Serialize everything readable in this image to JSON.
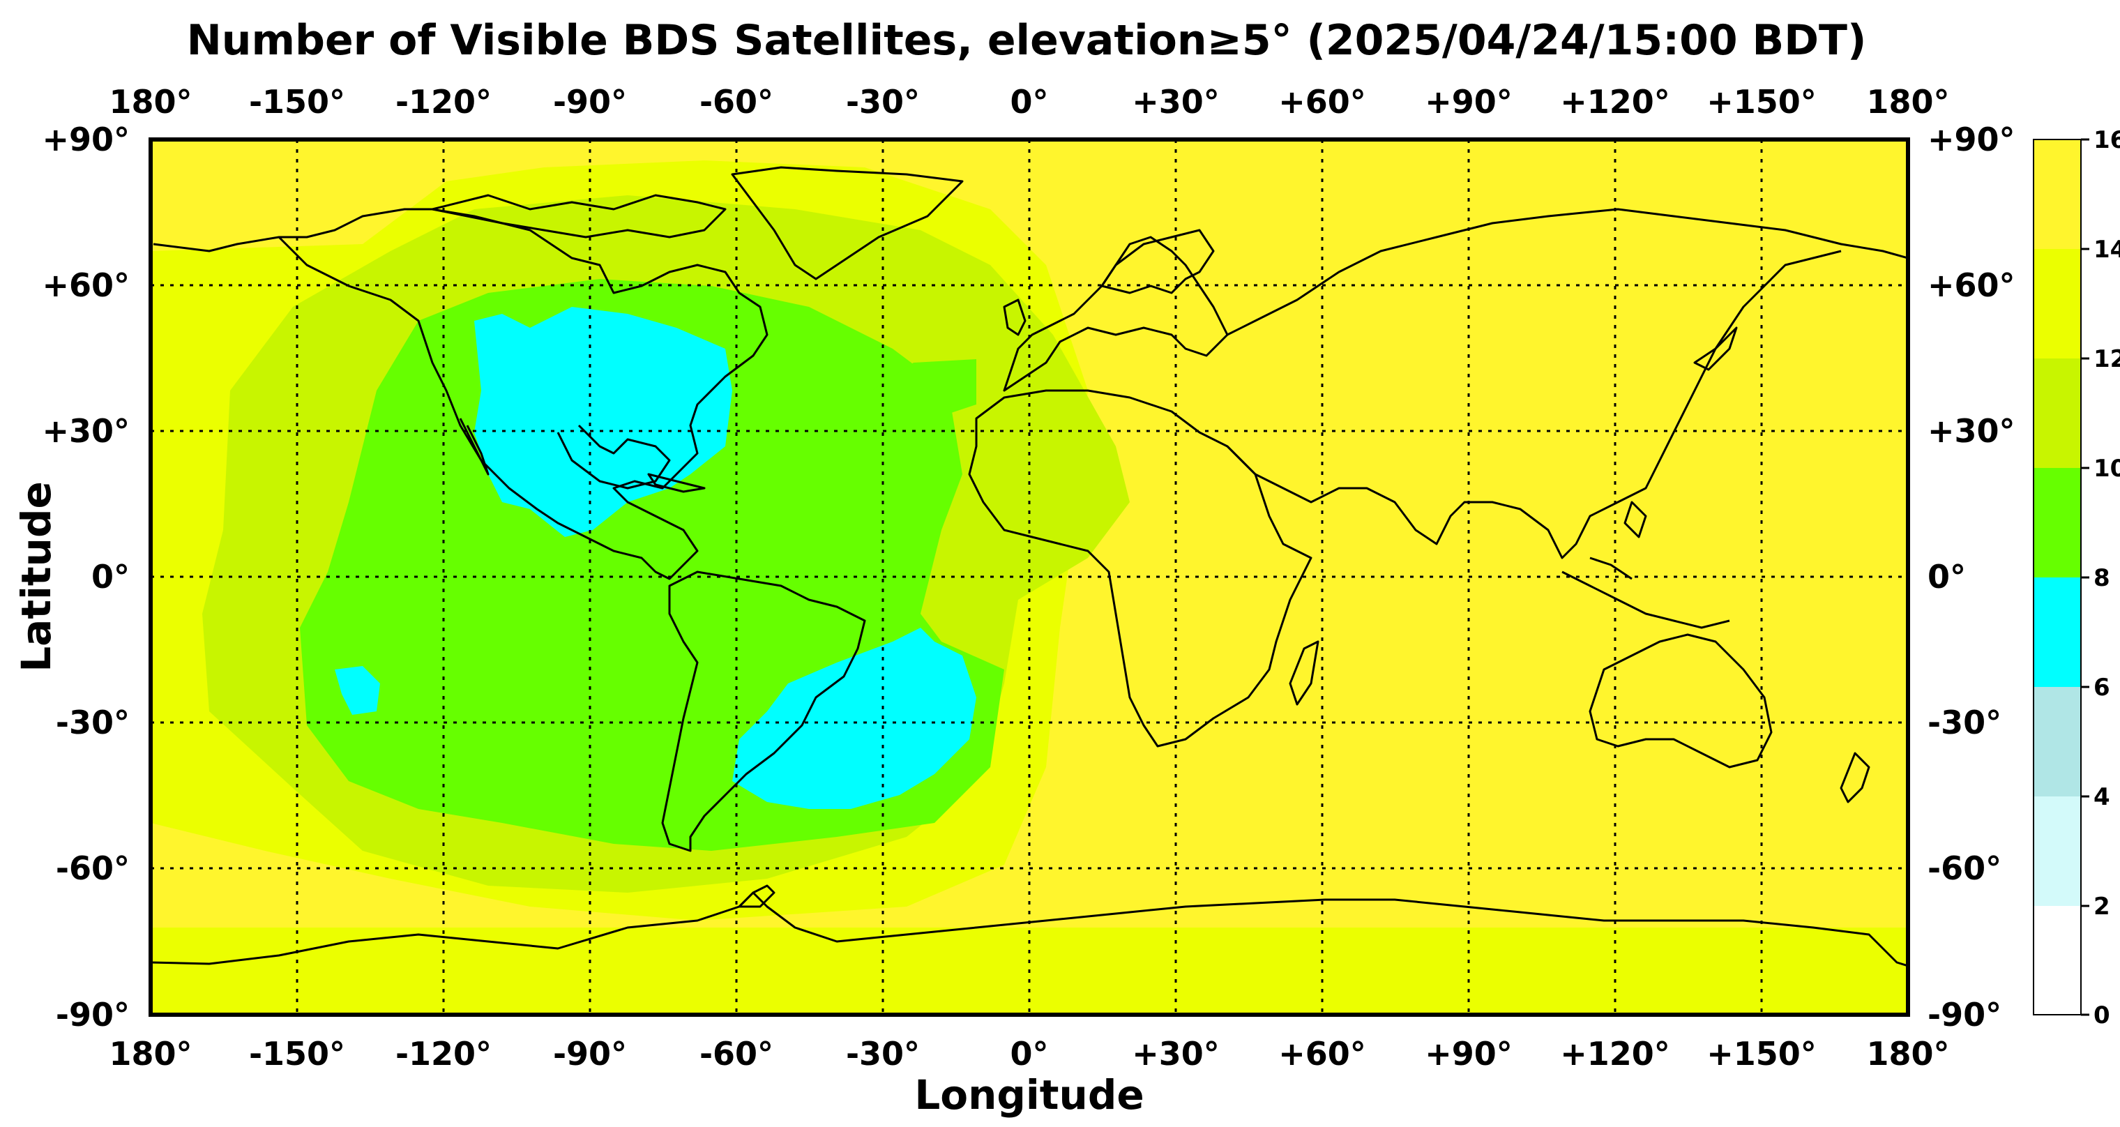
{
  "title": "Number of Visible BDS Satellites, elevation≥5° (2025/04/24/15:00 BDT)",
  "x_axis": {
    "label": "Longitude",
    "ticks": [
      "180°",
      "-150°",
      "-120°",
      "-90°",
      "-60°",
      "-30°",
      "0°",
      "+30°",
      "+60°",
      "+90°",
      "+120°",
      "+150°",
      "180°"
    ]
  },
  "y_axis": {
    "label": "Latitude",
    "ticks": [
      "+90°",
      "+60°",
      "+30°",
      "0°",
      "-30°",
      "-60°",
      "-90°"
    ]
  },
  "colorbar": {
    "ticks": [
      "16",
      "14",
      "12",
      "10",
      "8",
      "6",
      "4",
      "2",
      "0"
    ],
    "bands": [
      {
        "range": [
          0,
          2
        ],
        "color": "#ffffff"
      },
      {
        "range": [
          2,
          4
        ],
        "color": "#d3fafa"
      },
      {
        "range": [
          4,
          6
        ],
        "color": "#b0e6e6"
      },
      {
        "range": [
          6,
          8
        ],
        "color": "#00ffff"
      },
      {
        "range": [
          8,
          10
        ],
        "color": "#66ff00"
      },
      {
        "range": [
          10,
          12
        ],
        "color": "#c8f500"
      },
      {
        "range": [
          12,
          14
        ],
        "color": "#ebff00"
      },
      {
        "range": [
          14,
          16
        ],
        "color": "#fff52d"
      }
    ]
  },
  "map_regions": [
    {
      "name": "cyan-north-america",
      "value": "6-8"
    },
    {
      "name": "cyan-south-atlantic",
      "value": "6-8"
    },
    {
      "name": "green-western-hemisphere",
      "value": "8-10"
    },
    {
      "name": "yellow-eastern-hemisphere",
      "value": "14-16"
    }
  ]
}
